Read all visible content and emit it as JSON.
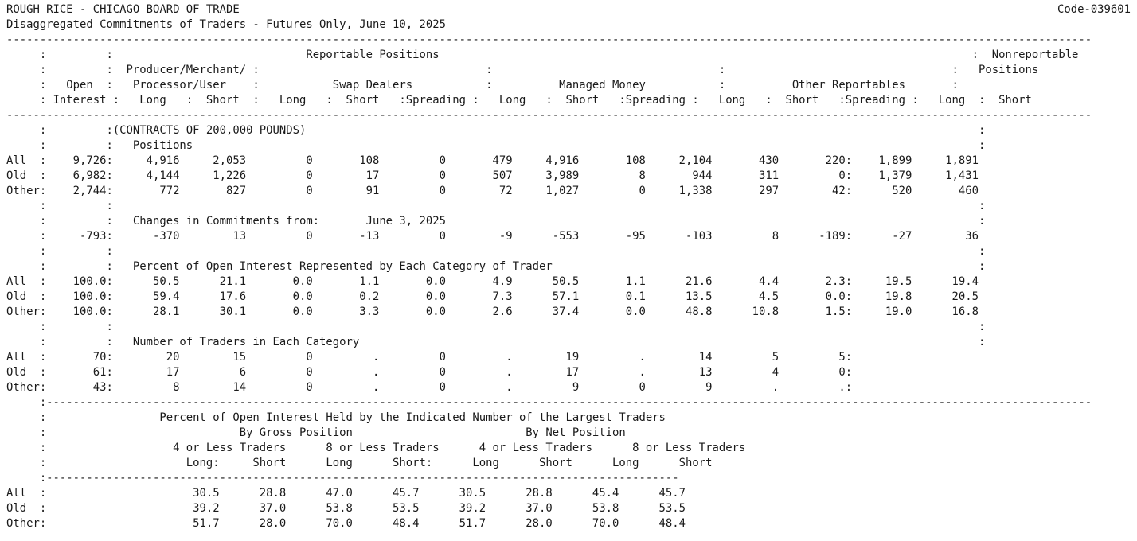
{
  "header": {
    "title": "ROUGH RICE - CHICAGO BOARD OF TRADE",
    "code": "Code-039601",
    "subtitle": "Disaggregated Commitments of Traders - Futures Only, June 10, 2025"
  },
  "report_lines": [
    "-------------------------------------------------------------------------------------------------------------------------------------------------------------------",
    "     :         :                             Reportable Positions                                                                                :  Nonreportable",
    "     :         :  Producer/Merchant/ :                                  :                                  :                                  :   Positions",
    "     :   Open  :   Processor/User    :           Swap Dealers           :          Managed Money           :          Other Reportables       :",
    "     : Interest :   Long   :  Short  :   Long   :  Short   :Spreading :   Long   :  Short   :Spreading :   Long   :  Short   :Spreading :   Long  :  Short",
    "-------------------------------------------------------------------------------------------------------------------------------------------------------------------",
    "     :         :(CONTRACTS OF 200,000 POUNDS)                                                                                                     :",
    "     :         :   Positions                                                                                                                      :",
    "All  :    9,726:     4,916     2,053         0       108         0       479     4,916       108     2,104       430       220:    1,899     1,891",
    "Old  :    6,982:     4,144     1,226         0        17         0       507     3,989         8       944       311         0:    1,379     1,431",
    "Other:    2,744:       772       827         0        91         0        72     1,027         0     1,338       297        42:      520       460",
    "     :         :                                                                                                                                  :",
    "     :         :   Changes in Commitments from:       June 3, 2025                                                                                :",
    "     :     -793:      -370        13         0       -13         0        -9      -553       -95      -103         8      -189:      -27        36",
    "     :         :                                                                                                                                  :",
    "     :         :   Percent of Open Interest Represented by Each Category of Trader                                                                :",
    "All  :    100.0:      50.5      21.1       0.0       1.1       0.0       4.9      50.5       1.1      21.6       4.4       2.3:     19.5      19.4",
    "Old  :    100.0:      59.4      17.6       0.0       0.2       0.0       7.3      57.1       0.1      13.5       4.5       0.0:     19.8      20.5",
    "Other:    100.0:      28.1      30.1       0.0       3.3       0.0       2.6      37.4       0.0      48.8      10.8       1.5:     19.0      16.8",
    "     :         :                                                                                                                                  :",
    "     :         :   Number of Traders in Each Category                                                                                             :",
    "All  :       70:        20        15         0         .         0         .        19         .        14         5         5:",
    "Old  :       61:        17         6         0         .         0         .        17         .        13         4         0:",
    "Other:       43:         8        14         0         .         0         .         9         0         9         .         .:",
    "     :-------------------------------------------------------------------------------------------------------------------------------------------------------------",
    "     :                 Percent of Open Interest Held by the Indicated Number of the Largest Traders",
    "     :                             By Gross Position                          By Net Position",
    "     :                   4 or Less Traders      8 or Less Traders      4 or Less Traders      8 or Less Traders",
    "     :                     Long:     Short      Long      Short:      Long      Short      Long      Short",
    "     :-----------------------------------------------------------------------------------------------",
    "All  :                      30.5      28.8      47.0      45.7      30.5      28.8      45.4      45.7",
    "Old  :                      39.2      37.0      53.8      53.5      39.2      37.0      53.8      53.5",
    "Other:                      51.7      28.0      70.0      48.4      51.7      28.0      70.0      48.4"
  ]
}
